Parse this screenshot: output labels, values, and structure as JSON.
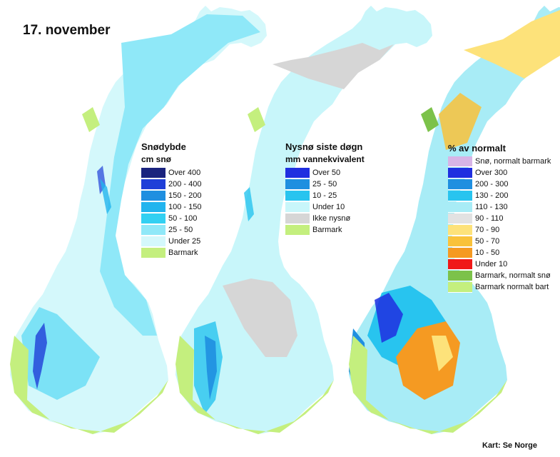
{
  "date": "17. november",
  "credit": "Kart: Se Norge",
  "legends": [
    {
      "title": "Snødybde",
      "subtitle": "cm snø",
      "items": [
        {
          "label": "Over 400",
          "color": "#1a237e"
        },
        {
          "label": "200 - 400",
          "color": "#1f3fd8"
        },
        {
          "label": "150 - 200",
          "color": "#1f8fe0"
        },
        {
          "label": "100 - 150",
          "color": "#22b4ee"
        },
        {
          "label": "50 - 100",
          "color": "#33d0f2"
        },
        {
          "label": "25 - 50",
          "color": "#8fe8f8"
        },
        {
          "label": "Under 25",
          "color": "#d4f8fb"
        },
        {
          "label": "Barmark",
          "color": "#c4ef7e"
        }
      ]
    },
    {
      "title": "Nysnø siste døgn",
      "subtitle": "mm vannekvivalent",
      "items": [
        {
          "label": "Over 50",
          "color": "#1f2fe0"
        },
        {
          "label": "25 - 50",
          "color": "#1f8fe0"
        },
        {
          "label": "10 - 25",
          "color": "#28c4ef"
        },
        {
          "label": "Under 10",
          "color": "#c8f6fa"
        },
        {
          "label": "Ikke nysnø",
          "color": "#d6d6d6"
        },
        {
          "label": "Barmark",
          "color": "#c4ef7e"
        }
      ]
    },
    {
      "title": "% av normalt",
      "subtitle": "",
      "items": [
        {
          "label": "Snø, normalt barmark",
          "color": "#d8b4e6"
        },
        {
          "label": "Over 300",
          "color": "#1f2fe0"
        },
        {
          "label": "200 - 300",
          "color": "#1f8fe0"
        },
        {
          "label": "130 - 200",
          "color": "#28c4ef"
        },
        {
          "label": "110 - 130",
          "color": "#a8ecf6"
        },
        {
          "label": "90 - 110",
          "color": "#e2e2e2"
        },
        {
          "label": "70 - 90",
          "color": "#fde27a"
        },
        {
          "label": "50 - 70",
          "color": "#f9c23a"
        },
        {
          "label": "10 - 50",
          "color": "#f59a22"
        },
        {
          "label": "Under 10",
          "color": "#f01818"
        },
        {
          "label": "Barmark, normalt snø",
          "color": "#7cc24a"
        },
        {
          "label": "Barmark normalt bart",
          "color": "#c4ef7e"
        }
      ]
    }
  ]
}
